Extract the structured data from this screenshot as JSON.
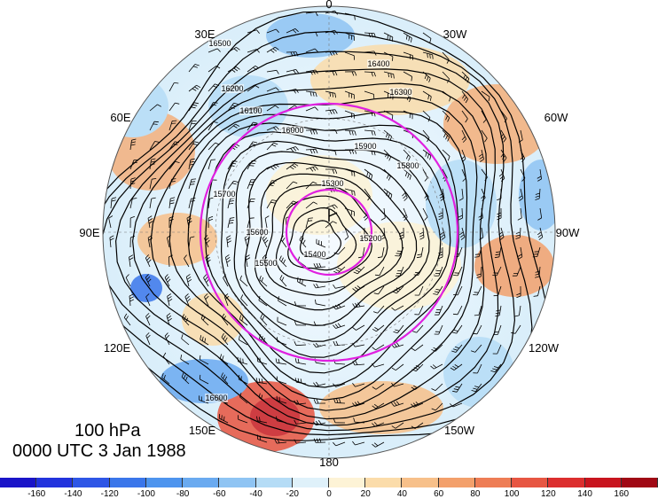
{
  "map": {
    "level": "100 hPa",
    "time": "0000 UTC 3 Jan 1988",
    "projection": "north-polar-stereographic",
    "field_shaded": "temperature-anomaly-style shading",
    "contour_color": "#000000",
    "circle_color": "#e020e0",
    "longitude_labels": [
      "0",
      "30W",
      "60W",
      "90W",
      "120W",
      "150W",
      "180",
      "150E",
      "120E",
      "90E",
      "60E",
      "30E"
    ],
    "contour_labels": [
      "16500",
      "16400",
      "16300",
      "16200",
      "16100",
      "16000",
      "15900",
      "15800",
      "15700",
      "15600",
      "15500",
      "15400",
      "15300",
      "15200",
      "16600"
    ]
  },
  "colorbar": {
    "ticks": [
      "-160",
      "-140",
      "-120",
      "-100",
      "-80",
      "-60",
      "-40",
      "-20",
      "0",
      "20",
      "40",
      "60",
      "80",
      "100",
      "120",
      "140",
      "160"
    ],
    "colors": [
      "#1a14c8",
      "#2233dd",
      "#2e56e6",
      "#3a76ea",
      "#4d94ee",
      "#6aaaf0",
      "#8fc4f3",
      "#b5dcf6",
      "#dff1fa",
      "#fdf3d6",
      "#fbdcaa",
      "#f7c08a",
      "#f3a06b",
      "#ee7d55",
      "#e75642",
      "#dc2e2e",
      "#c8141e",
      "#a00814"
    ]
  }
}
